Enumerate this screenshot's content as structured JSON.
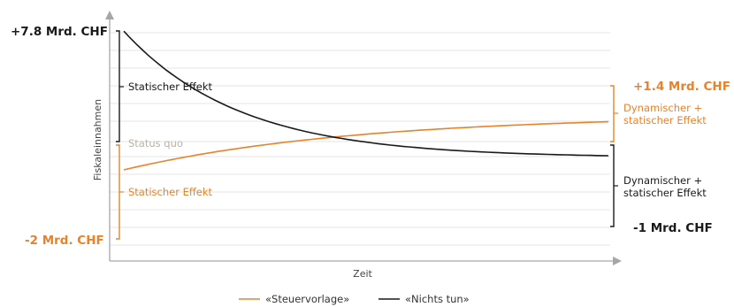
{
  "chart_data": {
    "type": "line",
    "xlabel": "Zeit",
    "ylabel": "Fiskaleinnahmen",
    "grid": true,
    "legend_position": "bottom-center",
    "colors": {
      "steuervorlage": "#e8822b",
      "nichts_tun": "#1a1a1a",
      "status_quo": "#b9b2a4",
      "grid": "#e6e6e6",
      "axis": "#a6a6a6"
    },
    "series": [
      {
        "name": "«Steuervorlage»",
        "color": "#e8822b",
        "start_value": -2,
        "end_value": 1.4,
        "shape": "concave-increasing"
      },
      {
        "name": "«Nichts tun»",
        "color": "#1a1a1a",
        "start_value": 7.8,
        "end_value": -1,
        "shape": "convex-decreasing"
      }
    ],
    "status_quo_label": "Status quo",
    "value_labels": {
      "left_top": "+7.8 Mrd. CHF",
      "left_bottom": "-2 Mrd. CHF",
      "right_top": "+1.4 Mrd. CHF",
      "right_bottom": "-1 Mrd. CHF"
    },
    "bracket_labels": {
      "left_black": "Statischer Effekt",
      "left_orange": "Statischer Effekt",
      "right_orange": [
        "Dynamischer +",
        "statischer Effekt"
      ],
      "right_black": [
        "Dynamischer +",
        "statischer Effekt"
      ]
    }
  }
}
